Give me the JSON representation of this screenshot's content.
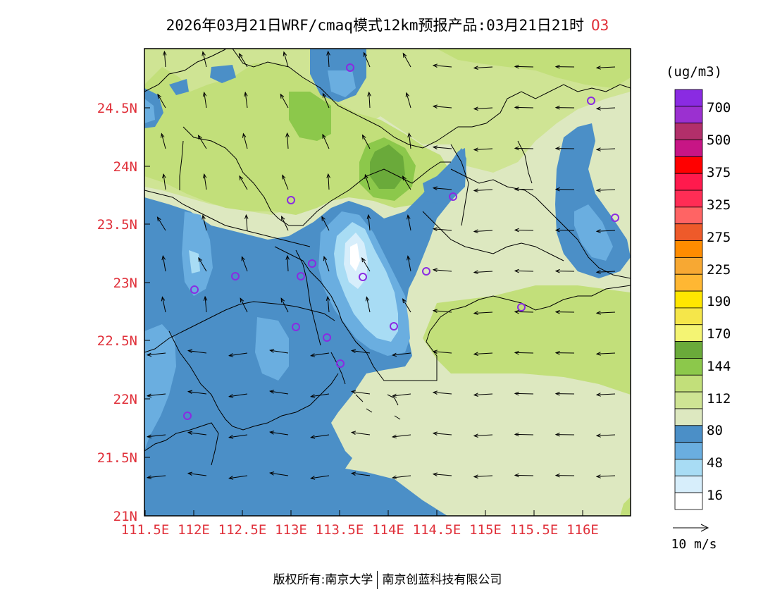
{
  "title": {
    "text": "2026年03月21日WRF/cmaq模式12km预报产品:03月21日21时",
    "pollutant": "O3"
  },
  "units": "(ug/m3)",
  "lat_labels": [
    "24.5N",
    "24N",
    "23.5N",
    "23N",
    "22.5N",
    "22N",
    "21.5N",
    "21N"
  ],
  "lon_labels": [
    "111.5E",
    "112E",
    "112.5E",
    "113E",
    "113.5E",
    "114E",
    "114.5E",
    "115E",
    "115.5E",
    "116E"
  ],
  "colorbar": {
    "colors": [
      "#8a2be2",
      "#9b30d0",
      "#b22f6a",
      "#c71585",
      "#ff0000",
      "#ff1a4d",
      "#ff2d55",
      "#ff6464",
      "#ee5a2a",
      "#ff8c00",
      "#f7a833",
      "#ffb733",
      "#ffe600",
      "#f5e64a",
      "#f4f473",
      "#6aaa3a",
      "#8cc84b",
      "#c2df7a",
      "#cfe494",
      "#dde8c0",
      "#4b8fc7",
      "#6aaee0",
      "#a8dcf4",
      "#d7eefb",
      "#ffffff"
    ],
    "labels": [
      "700",
      "500",
      "375",
      "325",
      "275",
      "225",
      "190",
      "170",
      "144",
      "112",
      "80",
      "48",
      "16"
    ]
  },
  "wind_legend": {
    "text": "10  m/s"
  },
  "footer": {
    "left": "版权所有:南京大学",
    "right": "南京创蓝科技有限公司"
  }
}
